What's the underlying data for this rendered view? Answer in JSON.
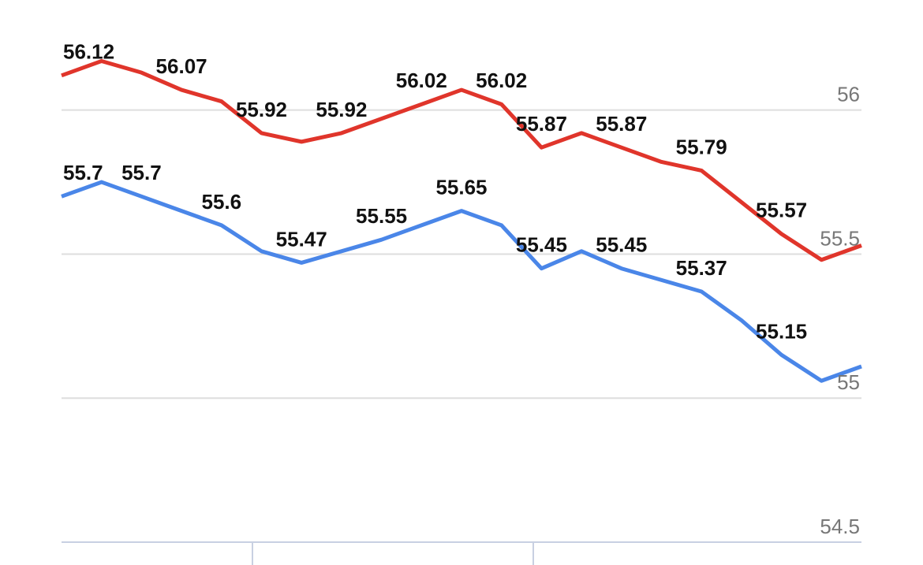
{
  "chart_data": {
    "type": "line",
    "categories": [
      null,
      null,
      null,
      null,
      null,
      null,
      null,
      null,
      null,
      null,
      null,
      null,
      null,
      null,
      null,
      null,
      null,
      null,
      null,
      null,
      null
    ],
    "series": [
      {
        "color": "#e0352b",
        "values": [
          56.12,
          56.17,
          56.13,
          56.07,
          56.03,
          55.92,
          55.89,
          55.92,
          55.97,
          56.02,
          56.07,
          56.02,
          55.87,
          55.92,
          55.87,
          55.82,
          55.79,
          55.68,
          55.57,
          55.48,
          55.53
        ],
        "value_labels": [
          "56.12",
          null,
          null,
          "56.07",
          null,
          "55.92",
          null,
          "55.92",
          null,
          "56.02",
          null,
          "56.02",
          "55.87",
          null,
          "55.87",
          null,
          "55.79",
          null,
          "55.57",
          null,
          null
        ]
      },
      {
        "color": "#4a86e8",
        "values": [
          55.7,
          55.75,
          55.7,
          55.65,
          55.6,
          55.51,
          55.47,
          55.51,
          55.55,
          55.6,
          55.65,
          55.6,
          55.45,
          55.51,
          55.45,
          55.41,
          55.37,
          55.27,
          55.15,
          55.06,
          55.11
        ],
        "value_labels": [
          "55.7",
          null,
          "55.7",
          null,
          "55.6",
          null,
          "55.47",
          null,
          "55.55",
          null,
          "55.65",
          null,
          "55.45",
          null,
          "55.45",
          null,
          "55.37",
          null,
          "55.15",
          null,
          null
        ]
      }
    ],
    "ylim": [
      54.5,
      56.3
    ],
    "yticks": [
      {
        "value": 54.5,
        "label": "54.5"
      },
      {
        "value": 55,
        "label": "55"
      },
      {
        "value": 55.5,
        "label": "55.5"
      },
      {
        "value": 56,
        "label": "56"
      }
    ],
    "grid": true
  }
}
